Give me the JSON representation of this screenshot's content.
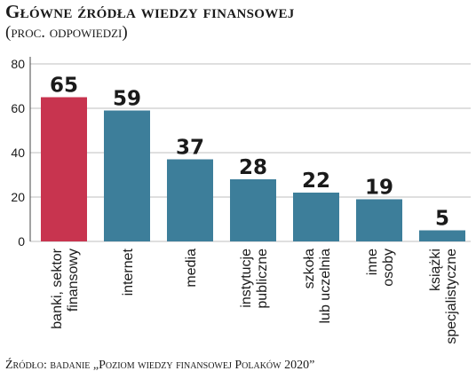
{
  "header": {
    "title": "Główne źródła wiedzy finansowej",
    "subtitle": "(proc. odpowiedzi)"
  },
  "footer": {
    "source": "Źródło: badanie „Poziom wiedzy finansowej Polaków 2020”"
  },
  "colors": {
    "highlight": "#c8344f",
    "bar": "#3d7e9a",
    "grid": "#bfbfbf"
  },
  "chart_data": {
    "type": "bar",
    "title": "Główne źródła wiedzy finansowej",
    "subtitle": "(proc. odpowiedzi)",
    "categories": [
      [
        "banki, sektor",
        "finansowy"
      ],
      [
        "internet"
      ],
      [
        "media"
      ],
      [
        "instytucje",
        "publiczne"
      ],
      [
        "szkoła",
        "lub uczelnia"
      ],
      [
        "inne",
        "osoby"
      ],
      [
        "książki",
        "specjalistyczne"
      ]
    ],
    "values": [
      65,
      59,
      37,
      28,
      22,
      19,
      5
    ],
    "highlight_index": 0,
    "ylim": [
      0,
      80
    ],
    "yticks": [
      0,
      20,
      40,
      60,
      80
    ],
    "grid": true,
    "xlabel": "",
    "ylabel": ""
  }
}
